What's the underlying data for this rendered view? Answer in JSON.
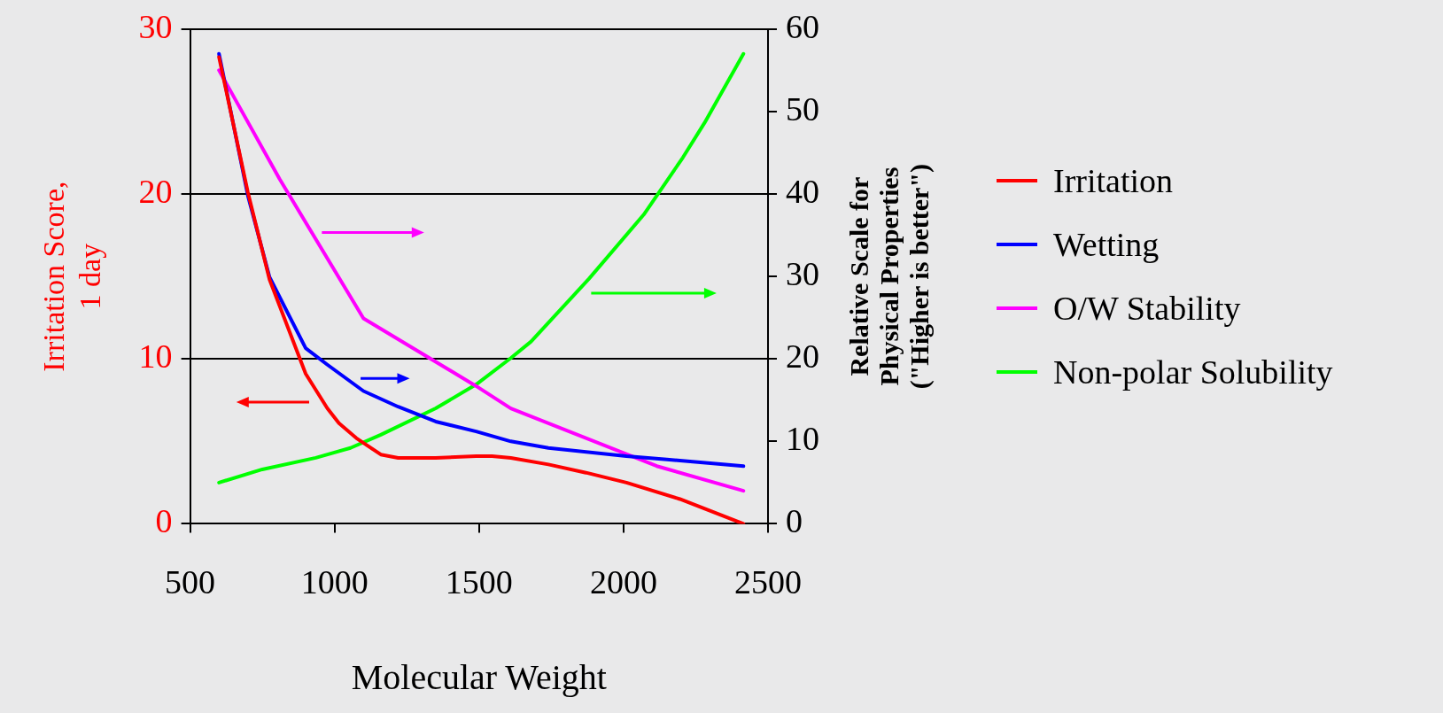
{
  "chart_data": {
    "type": "line",
    "xlabel": "Molecular Weight",
    "ylabel": "Irritation Score,\n1 day",
    "y2label": "Relative Scale for\nPhysical Properties\n(\"Higher is better\")",
    "xlim": [
      500,
      2500
    ],
    "xticks": [
      500,
      1000,
      1500,
      2000,
      2500
    ],
    "ylim": [
      0,
      30
    ],
    "yticks": [
      0,
      10,
      20,
      30
    ],
    "y2lim": [
      0,
      60
    ],
    "y2ticks": [
      0,
      10,
      20,
      30,
      40,
      50,
      60
    ],
    "grid": "y",
    "legend": "right",
    "marker": "none",
    "line_style": "solid",
    "series": [
      {
        "name": "Irritation",
        "color": "#ff0000",
        "axis": "y",
        "x": [
          600,
          700,
          775,
          900,
          975,
          1015,
          1075,
          1160,
          1220,
          1350,
          1490,
          1545,
          1610,
          1740,
          1870,
          2010,
          2195,
          2415
        ],
        "values": [
          28.3,
          20.1,
          14.8,
          9.1,
          7.0,
          6.1,
          5.2,
          4.2,
          4.0,
          4.0,
          4.1,
          4.1,
          4.0,
          3.6,
          3.1,
          2.5,
          1.5,
          0
        ]
      },
      {
        "name": "Wetting",
        "color": "#0000ff",
        "axis": "y2",
        "x": [
          600,
          700,
          775,
          900,
          975,
          1100,
          1220,
          1350,
          1490,
          1610,
          1740,
          2010,
          2150,
          2415
        ],
        "values": [
          57,
          39.8,
          29.9,
          21.3,
          19.3,
          16.1,
          14.2,
          12.4,
          11.2,
          10.0,
          9.2,
          8.2,
          7.8,
          7.0
        ]
      },
      {
        "name": "O/W Stability",
        "color": "#ff00ff",
        "axis": "y2",
        "x": [
          600,
          810,
          1100,
          1490,
          1610,
          2115,
          2415
        ],
        "values": [
          55,
          41.8,
          24.9,
          16.7,
          14.0,
          7.0,
          4.0
        ]
      },
      {
        "name": "Non-polar Solubility",
        "color": "#00ff00",
        "axis": "y2",
        "x": [
          600,
          750,
          935,
          1055,
          1160,
          1350,
          1490,
          1610,
          1680,
          1880,
          2070,
          2205,
          2280,
          2415
        ],
        "values": [
          5.0,
          6.6,
          8.0,
          9.2,
          10.8,
          14.0,
          16.9,
          20.1,
          22.1,
          29.7,
          37.5,
          44.4,
          48.6,
          57.0
        ]
      }
    ]
  }
}
